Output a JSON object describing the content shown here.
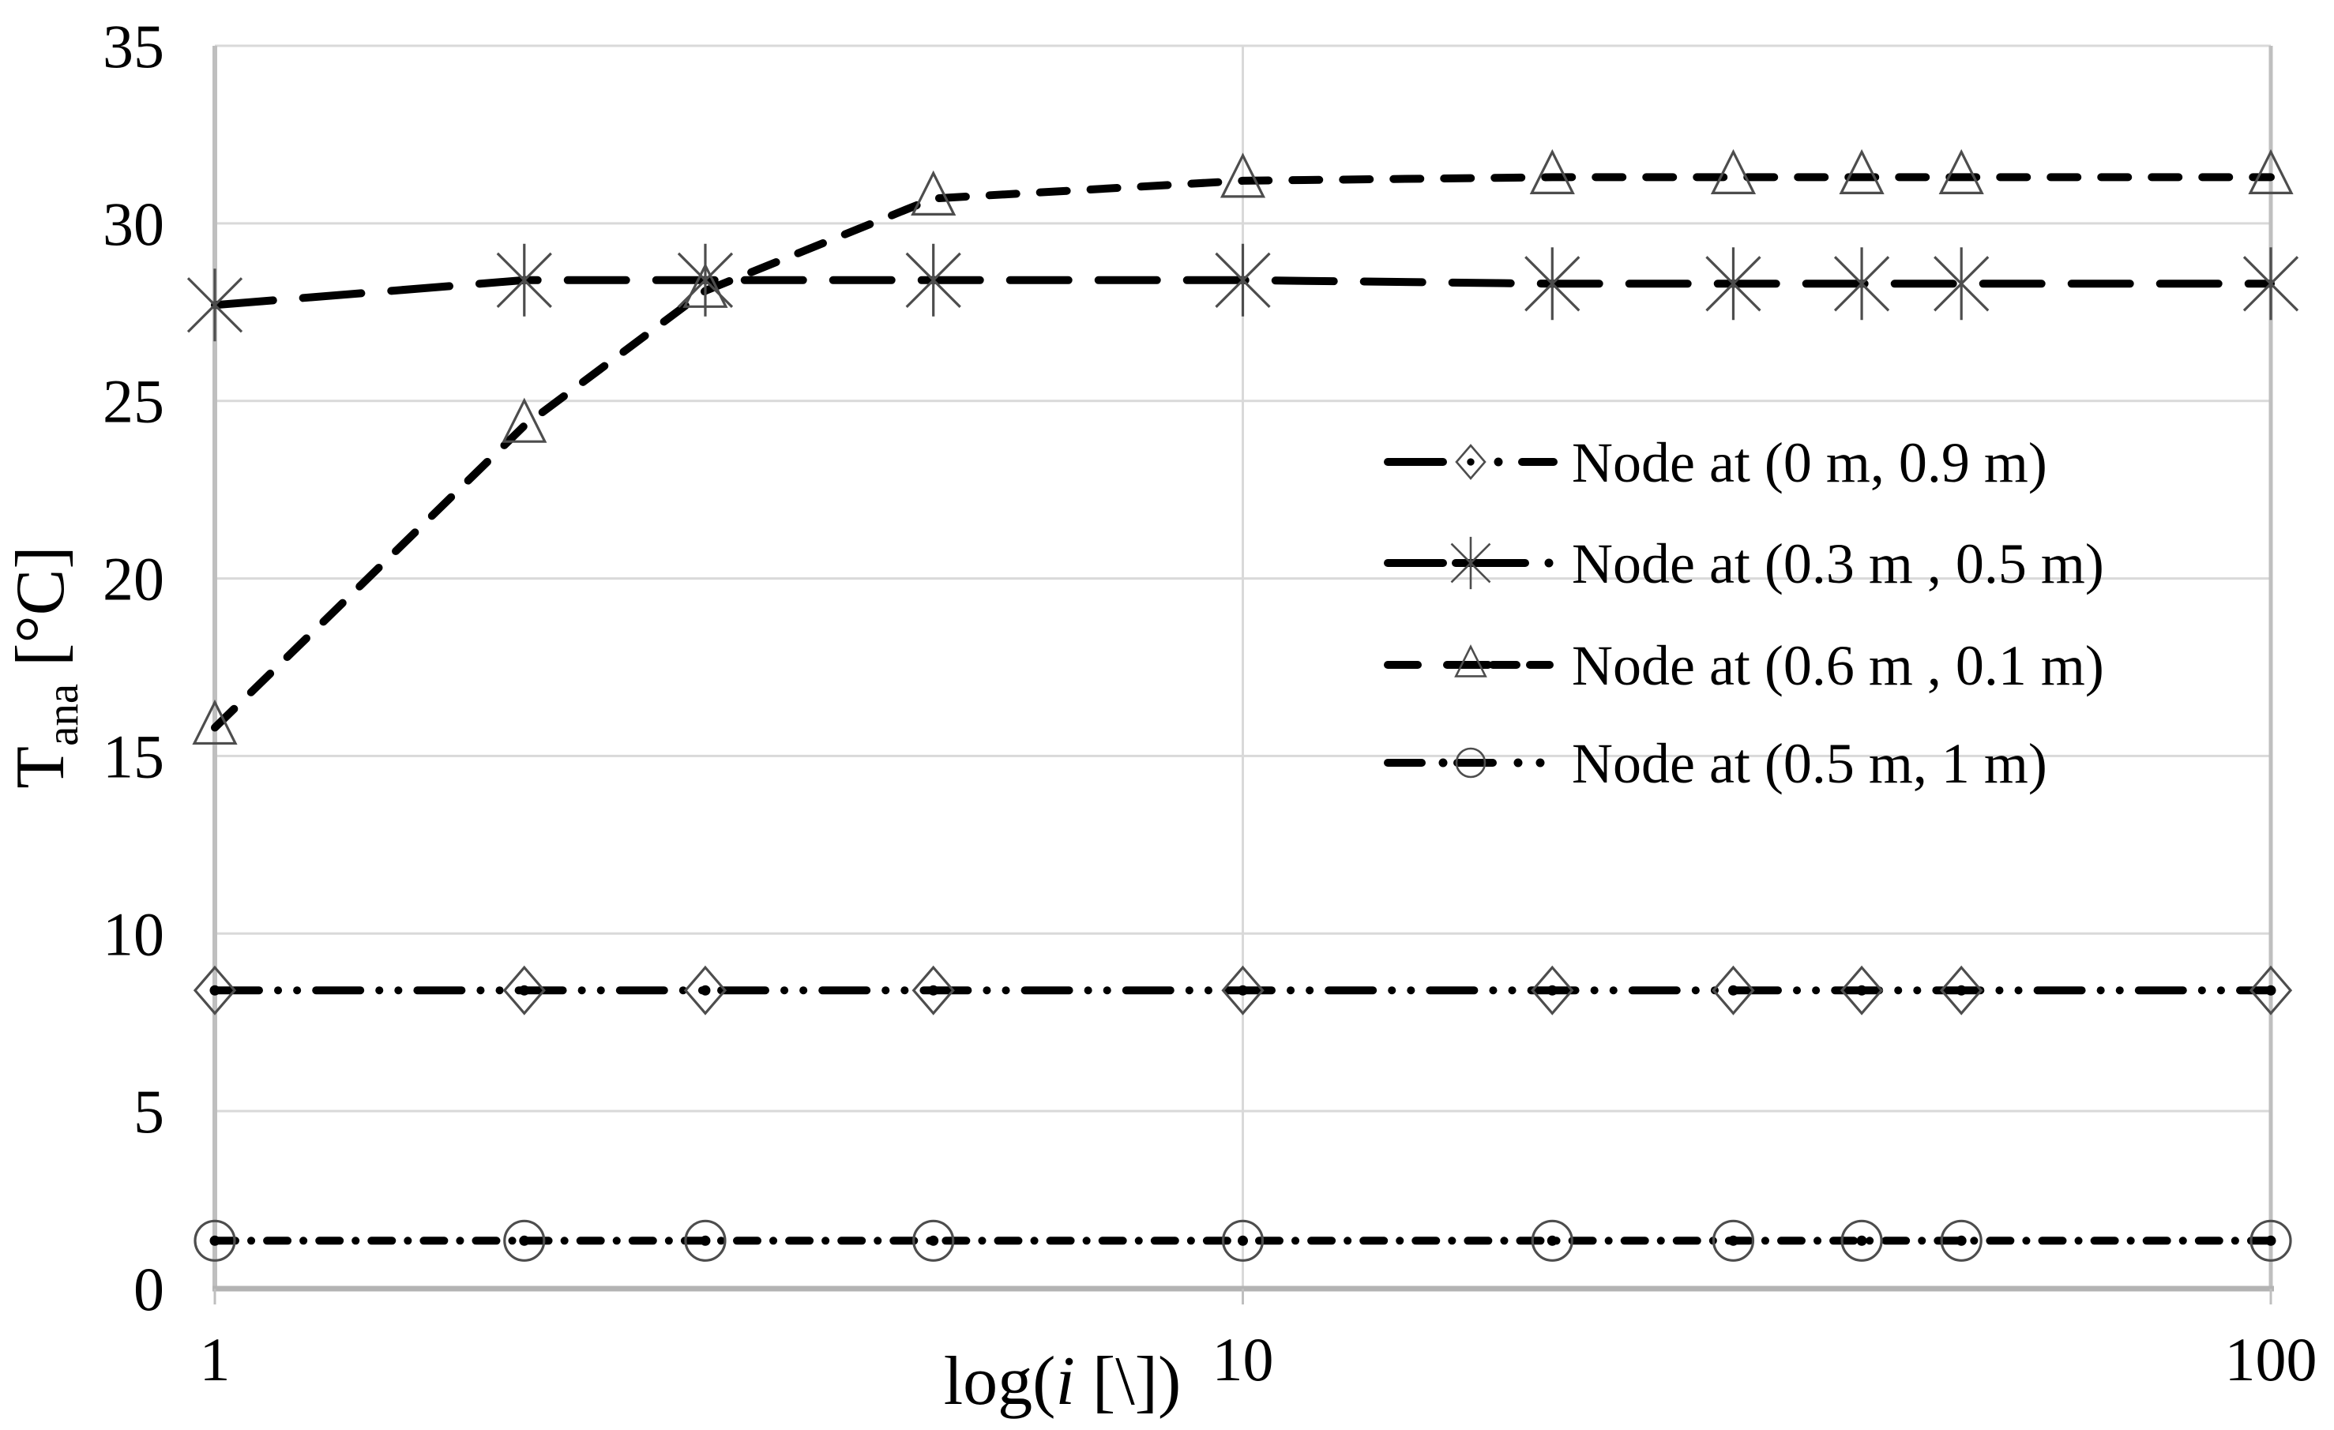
{
  "figure": {
    "background": "#ffffff",
    "colors": {
      "line": "#000000",
      "marker_stroke": "#4d4d4d",
      "marker_dot": "#000000",
      "gridline": "#d9d9d9",
      "axis_line": "#bfbfbf",
      "axis_line_bottom": "#b3b3b3",
      "text": "#000000"
    }
  },
  "chart_data": {
    "type": "line",
    "x_scale": "log",
    "xlim": [
      1,
      100
    ],
    "ylim": [
      0,
      35
    ],
    "grid": {
      "horizontal_step": 5,
      "vertical_lines_at": [
        10
      ]
    },
    "legend_position": "inside-right",
    "x": [
      1,
      2,
      3,
      5,
      10,
      20,
      30,
      40,
      50,
      100
    ],
    "series": [
      {
        "name": "Node at (0 m, 0.9 m)",
        "marker": "diamond-dot",
        "line_style": "dash-dot-dot",
        "values": [
          8.4,
          8.4,
          8.4,
          8.4,
          8.4,
          8.4,
          8.4,
          8.4,
          8.4,
          8.4
        ]
      },
      {
        "name": "Node at (0.3 m , 0.5 m)",
        "marker": "asterisk",
        "line_style": "long-dash",
        "values": [
          27.7,
          28.4,
          28.4,
          28.4,
          28.4,
          28.3,
          28.3,
          28.3,
          28.3,
          28.3
        ]
      },
      {
        "name": "Node at (0.6 m , 0.1 m)",
        "marker": "triangle",
        "line_style": "dash",
        "values": [
          15.8,
          24.3,
          28.1,
          30.7,
          31.2,
          31.3,
          31.3,
          31.3,
          31.3,
          31.3
        ]
      },
      {
        "name": "Node at (0.5 m, 1 m)",
        "marker": "circle-dot",
        "line_style": "dash-dot",
        "values": [
          1.35,
          1.35,
          1.35,
          1.35,
          1.35,
          1.35,
          1.35,
          1.35,
          1.35,
          1.35
        ]
      }
    ],
    "xlabel": "log(i [\\])",
    "xlabel_parts": {
      "prefix": "log(",
      "italic": "i",
      "suffix": " [\\])"
    },
    "ylabel": "Tana [°C]",
    "ylabel_parts": {
      "main": "T",
      "subscript": "ana",
      "suffix": " [°C]"
    },
    "x_ticks": [
      {
        "value": 1,
        "label": "1"
      },
      {
        "value": 10,
        "label": "10"
      },
      {
        "value": 100,
        "label": "100"
      }
    ],
    "y_ticks": [
      {
        "value": 0,
        "label": "0"
      },
      {
        "value": 5,
        "label": "5"
      },
      {
        "value": 10,
        "label": "10"
      },
      {
        "value": 15,
        "label": "15"
      },
      {
        "value": 20,
        "label": "20"
      },
      {
        "value": 25,
        "label": "25"
      },
      {
        "value": 30,
        "label": "30"
      },
      {
        "value": 35,
        "label": "35"
      }
    ]
  },
  "legend": {
    "items": [
      {
        "label": "Node at (0 m, 0.9 m)",
        "marker": "diamond-dot",
        "line_style": "dash-dot-dot"
      },
      {
        "label": "Node at (0.3 m , 0.5 m)",
        "marker": "asterisk",
        "line_style": "long-dash"
      },
      {
        "label": "Node at (0.6 m , 0.1 m)",
        "marker": "triangle",
        "line_style": "dash"
      },
      {
        "label": "Node at (0.5 m, 1 m)",
        "marker": "circle-dot",
        "line_style": "dash-dot"
      }
    ]
  }
}
